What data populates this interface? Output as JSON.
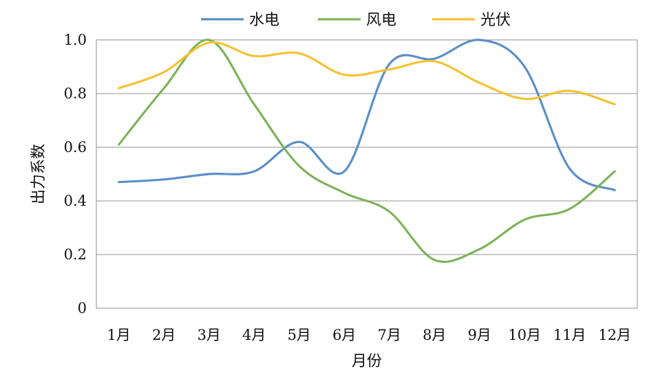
{
  "chart_data": {
    "type": "line",
    "xlabel": "月份",
    "ylabel": "出力系数",
    "categories": [
      "1月",
      "2月",
      "3月",
      "4月",
      "5月",
      "6月",
      "7月",
      "8月",
      "9月",
      "10月",
      "11月",
      "12月"
    ],
    "ylim": [
      0,
      1.0
    ],
    "yticks": [
      "0",
      "0.2",
      "0.4",
      "0.6",
      "0.8",
      "1.0"
    ],
    "grid": true,
    "legend_position": "top",
    "series": [
      {
        "name": "水电",
        "color": "#5b8fc7",
        "values": [
          0.47,
          0.48,
          0.5,
          0.51,
          0.62,
          0.51,
          0.91,
          0.93,
          1.0,
          0.9,
          0.52,
          0.44
        ]
      },
      {
        "name": "风电",
        "color": "#7db35a",
        "values": [
          0.61,
          0.82,
          1.0,
          0.76,
          0.53,
          0.43,
          0.36,
          0.18,
          0.22,
          0.33,
          0.37,
          0.51
        ]
      },
      {
        "name": "光伏",
        "color": "#f5c232",
        "values": [
          0.82,
          0.88,
          0.99,
          0.94,
          0.95,
          0.87,
          0.89,
          0.92,
          0.84,
          0.78,
          0.81,
          0.76
        ]
      }
    ]
  }
}
